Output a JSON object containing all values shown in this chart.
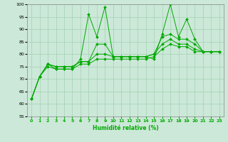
{
  "xlabel": "Humidité relative (%)",
  "xlim": [
    -0.5,
    23.5
  ],
  "ylim": [
    55,
    100
  ],
  "yticks": [
    55,
    60,
    65,
    70,
    75,
    80,
    85,
    90,
    95,
    100
  ],
  "xticks": [
    0,
    1,
    2,
    3,
    4,
    5,
    6,
    7,
    8,
    9,
    10,
    11,
    12,
    13,
    14,
    15,
    16,
    17,
    18,
    19,
    20,
    21,
    22,
    23
  ],
  "bg_color": "#cce8d8",
  "grid_color": "#99ccaa",
  "line_color": "#00aa00",
  "lines": [
    {
      "x": [
        0,
        1,
        2,
        3,
        4,
        5,
        6,
        7,
        8,
        9,
        10,
        11,
        12,
        13,
        14,
        15,
        16,
        17,
        18,
        19,
        20,
        21,
        22,
        23
      ],
      "y": [
        62,
        71,
        76,
        74,
        74,
        74,
        78,
        96,
        87,
        99,
        79,
        79,
        79,
        79,
        79,
        78,
        88,
        100,
        87,
        94,
        86,
        81,
        81,
        81
      ]
    },
    {
      "x": [
        0,
        1,
        2,
        3,
        4,
        5,
        6,
        7,
        8,
        9,
        10,
        11,
        12,
        13,
        14,
        15,
        16,
        17,
        18,
        19,
        20,
        21,
        22,
        23
      ],
      "y": [
        62,
        71,
        76,
        75,
        75,
        75,
        77,
        77,
        84,
        84,
        79,
        79,
        79,
        79,
        79,
        80,
        87,
        88,
        86,
        86,
        84,
        81,
        81,
        81
      ]
    },
    {
      "x": [
        0,
        1,
        2,
        3,
        4,
        5,
        6,
        7,
        8,
        9,
        10,
        11,
        12,
        13,
        14,
        15,
        16,
        17,
        18,
        19,
        20,
        21,
        22,
        23
      ],
      "y": [
        62,
        71,
        76,
        75,
        75,
        75,
        77,
        77,
        80,
        80,
        79,
        79,
        79,
        79,
        79,
        80,
        84,
        86,
        84,
        84,
        82,
        81,
        81,
        81
      ]
    },
    {
      "x": [
        0,
        1,
        2,
        3,
        4,
        5,
        6,
        7,
        8,
        9,
        10,
        11,
        12,
        13,
        14,
        15,
        16,
        17,
        18,
        19,
        20,
        21,
        22,
        23
      ],
      "y": [
        62,
        71,
        75,
        74,
        74,
        74,
        76,
        76,
        78,
        78,
        78,
        78,
        78,
        78,
        78,
        79,
        82,
        84,
        83,
        83,
        81,
        81,
        81,
        81
      ]
    }
  ]
}
